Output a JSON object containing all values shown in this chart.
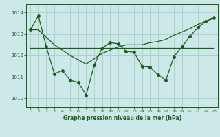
{
  "bg_color": "#cce8e8",
  "grid_color": "#b0d0d0",
  "line_color": "#1a5c1a",
  "text_color": "#1a5c1a",
  "xlabel": "Graphe pression niveau de la mer (hPa)",
  "ylim": [
    1009.6,
    1014.4
  ],
  "xlim": [
    -0.5,
    23.5
  ],
  "yticks": [
    1010,
    1011,
    1012,
    1013,
    1014
  ],
  "xticks": [
    0,
    1,
    2,
    3,
    4,
    5,
    6,
    7,
    8,
    9,
    10,
    11,
    12,
    13,
    14,
    15,
    16,
    17,
    18,
    19,
    20,
    21,
    22,
    23
  ],
  "series1_x": [
    0,
    1,
    2,
    3,
    4,
    5,
    6,
    7,
    8,
    9,
    10,
    11,
    12,
    13,
    14,
    15,
    16,
    17,
    18,
    19,
    20,
    21,
    22,
    23
  ],
  "series1_y": [
    1013.2,
    1013.85,
    1012.4,
    1011.15,
    1011.3,
    1010.85,
    1010.75,
    1010.15,
    1011.55,
    1012.35,
    1012.6,
    1012.55,
    1012.2,
    1012.15,
    1011.5,
    1011.45,
    1011.1,
    1010.85,
    1011.95,
    1012.4,
    1012.9,
    1013.3,
    1013.6,
    1013.75
  ],
  "series2_x": [
    0,
    1,
    2,
    3,
    4,
    5,
    6,
    7,
    8,
    9,
    10,
    11,
    12,
    13,
    14,
    15,
    16,
    17,
    18,
    19,
    20,
    21,
    22,
    23
  ],
  "series2_y": [
    1012.35,
    1012.35,
    1012.35,
    1012.35,
    1012.35,
    1012.35,
    1012.35,
    1012.35,
    1012.35,
    1012.35,
    1012.35,
    1012.35,
    1012.35,
    1012.35,
    1012.35,
    1012.35,
    1012.35,
    1012.35,
    1012.35,
    1012.35,
    1012.35,
    1012.35,
    1012.35,
    1012.35
  ],
  "series3_x": [
    0,
    1,
    2,
    3,
    4,
    5,
    6,
    7,
    8,
    9,
    10,
    11,
    12,
    13,
    14,
    15,
    16,
    17,
    18,
    19,
    20,
    21,
    22,
    23
  ],
  "series3_y": [
    1013.2,
    1013.2,
    1012.85,
    1012.5,
    1012.25,
    1012.0,
    1011.8,
    1011.6,
    1011.85,
    1012.1,
    1012.25,
    1012.4,
    1012.5,
    1012.5,
    1012.5,
    1012.6,
    1012.65,
    1012.75,
    1012.95,
    1013.1,
    1013.25,
    1013.45,
    1013.6,
    1013.75
  ]
}
